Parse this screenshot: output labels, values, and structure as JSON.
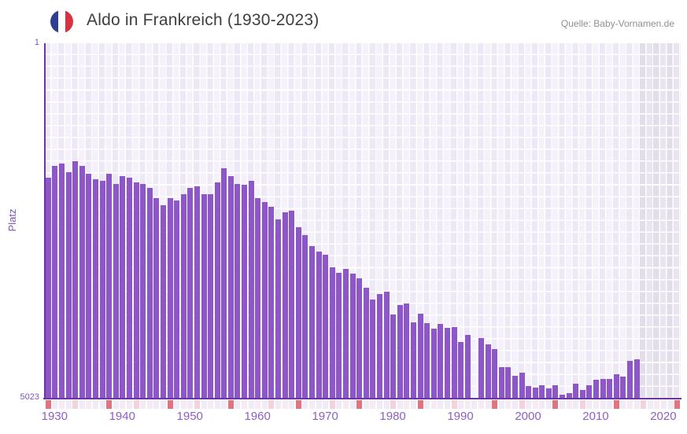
{
  "header": {
    "flag_icon": "france-flag-icon",
    "title": "Aldo in Frankreich (1930-2023)",
    "source": "Quelle: Baby-Vornamen.de"
  },
  "chart_data": {
    "type": "bar",
    "title": "Aldo in Frankreich (1930-2023)",
    "xlabel": "",
    "ylabel": "Platz",
    "y_axis": {
      "scale": "log",
      "inverted": true,
      "min": 1,
      "max": 5023,
      "top_tick": "1",
      "bottom_tick": "5023"
    },
    "start_year": 1930,
    "end_year": 2023,
    "x_tick_labels": [
      "1930",
      "1940",
      "1950",
      "1960",
      "1970",
      "1980",
      "1990",
      "2000",
      "2010",
      "2020"
    ],
    "series": [
      {
        "name": "Platz",
        "values": [
          25,
          19,
          18,
          22,
          17,
          19,
          23,
          26,
          27,
          23,
          29,
          24,
          25,
          28,
          29,
          32,
          41,
          49,
          41,
          43,
          37,
          32,
          31,
          37,
          37,
          28,
          20,
          24,
          29,
          30,
          27,
          41,
          45,
          50,
          68,
          58,
          55,
          82,
          100,
          130,
          148,
          159,
          215,
          246,
          224,
          250,
          281,
          352,
          467,
          409,
          387,
          668,
          533,
          513,
          806,
          655,
          822,
          938,
          837,
          920,
          903,
          1292,
          1090,
          null,
          1176,
          1367,
          1531,
          2361,
          2361,
          2907,
          2695,
          3714,
          3857,
          3645,
          3930,
          3645,
          4569,
          4400,
          3510,
          4081,
          3645,
          3194,
          3134,
          3110,
          2826,
          2962,
          2031,
          1956,
          null,
          null,
          null,
          null,
          null,
          null
        ]
      }
    ],
    "no_data_from_year": 2018,
    "heat_strip_levels": [
      3,
      0,
      1,
      0,
      2,
      0,
      1,
      0,
      0,
      3,
      0,
      1,
      0,
      2,
      0,
      1,
      0,
      0,
      3,
      0,
      1,
      0,
      2,
      0,
      1,
      0,
      0,
      3,
      0,
      1,
      0,
      1,
      0,
      2,
      0,
      1,
      0,
      3,
      0,
      1,
      0,
      0,
      2,
      0,
      1,
      0,
      3,
      0,
      1,
      0,
      0,
      2,
      0,
      1,
      0,
      3,
      0,
      1,
      0,
      0,
      2,
      0,
      1,
      0,
      1,
      0,
      3,
      0,
      1,
      0,
      2,
      0,
      1,
      0,
      0,
      3,
      0,
      1,
      0,
      2,
      0,
      1,
      0,
      0,
      3,
      0,
      1,
      0,
      2,
      0,
      1,
      0,
      0,
      3
    ],
    "colors": {
      "bar": "#8d57c8",
      "axis_line": "#6c35a6",
      "tick_text": "#8d5fc5",
      "axis_small_text": "#7d55b5",
      "title_text": "#3f3f3f",
      "source_text": "#8f8f8f",
      "plot_columns": [
        "#ede8f5",
        "#f4f1fa"
      ],
      "no_data_columns": [
        "#e1deea",
        "#e8e5f0"
      ],
      "strip_levels": [
        "#f0ebf6",
        "#f7eaf2",
        "#f3d1dd",
        "#e2737f"
      ],
      "flag_blue": "#2e3f92",
      "flag_white": "#ffffff",
      "flag_red": "#d8313f"
    }
  }
}
